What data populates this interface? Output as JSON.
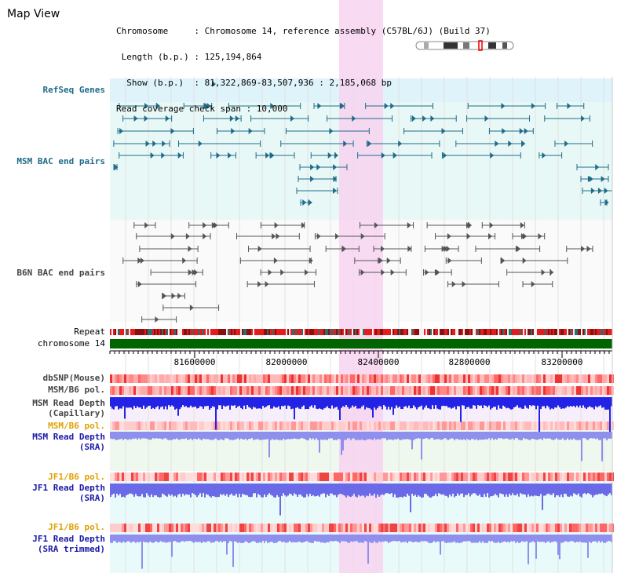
{
  "page": {
    "title": "Map View"
  },
  "info": {
    "lines": [
      "Chromosome     : Chromosome 14, reference assembly (C57BL/6J) (Build 37)",
      " Length (b.p.) : 125,194,864",
      "  Show (b.p.)  : 81,322,869-83,507,936 : 2,185,068 bp",
      "Read coverage check span : 10,000"
    ]
  },
  "tracks": {
    "refseq": "RefSeq Genes",
    "msm_bac": "MSM BAC end pairs",
    "b6n_bac": "B6N BAC end pairs",
    "repeat": "Repeat",
    "chromosome": "chromosome 14",
    "dbsnp": "dbSNP(Mouse)",
    "msm_pol1": "MSM/B6 pol.",
    "msm_depth_cap": "MSM Read Depth\n(Capillary)",
    "msm_pol2": "MSM/B6 pol.",
    "msm_depth_sra": "MSM Read Depth\n(SRA)",
    "jf1_pol1": "JF1/B6 pol.",
    "jf1_depth_sra": "JF1 Read Depth\n(SRA)",
    "jf1_pol2": "JF1/B6 pol.",
    "jf1_depth_trim": "JF1 Read Depth\n(SRA trimmed)"
  },
  "axis": {
    "ticks": [
      "81600000",
      "82000000",
      "82400000",
      "82800000",
      "83200000"
    ]
  },
  "colors": {
    "highlight": "#f7d3f0",
    "refseq_bg": "#dff3fb",
    "msm_bac_bg": "#e8f8f6",
    "chromosome_bar": "#006400",
    "feature": "#1f6b8a",
    "b6n_feature": "#555555"
  }
}
